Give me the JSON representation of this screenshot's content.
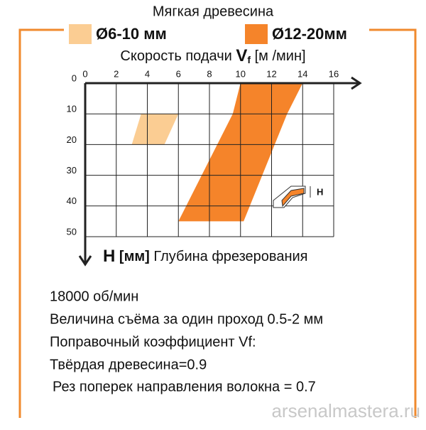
{
  "chart_data": {
    "type": "region",
    "title": "Мягкая древесина",
    "x_label": [
      "Скорость подачи",
      "V",
      "f",
      "[м /мин]"
    ],
    "y_label": [
      "H",
      "[мм]",
      "Глубина фрезерования"
    ],
    "xlim": [
      0,
      16
    ],
    "xticks": [
      0,
      2,
      4,
      6,
      8,
      10,
      12,
      14,
      16
    ],
    "ylim": [
      0,
      50
    ],
    "yticks": [
      0,
      10,
      20,
      30,
      40,
      50
    ],
    "y_inverted": true,
    "grid": true,
    "series": [
      {
        "name": "Ø6-10 мм",
        "color": "#fbcd93",
        "x": [
          3.6,
          6.0,
          5.1,
          3.0
        ],
        "y": [
          10,
          10,
          20,
          20
        ]
      },
      {
        "name": "Ø12-20мм",
        "color": "#f5842a",
        "x": [
          10,
          14,
          13,
          10.2,
          6,
          9.5
        ],
        "y": [
          0,
          0,
          10,
          45,
          45,
          10
        ]
      }
    ],
    "icon_label": "H",
    "notes": [
      "18000 об/мин",
      "Величина съёма за один проход 0.5-2 мм",
      "Поправочный коэффициент Vf:",
      "Твёрдая древесина=0.9",
      "Рез поперек направления волокна = 0.7"
    ],
    "watermark": "arsenalmastera.ru"
  }
}
